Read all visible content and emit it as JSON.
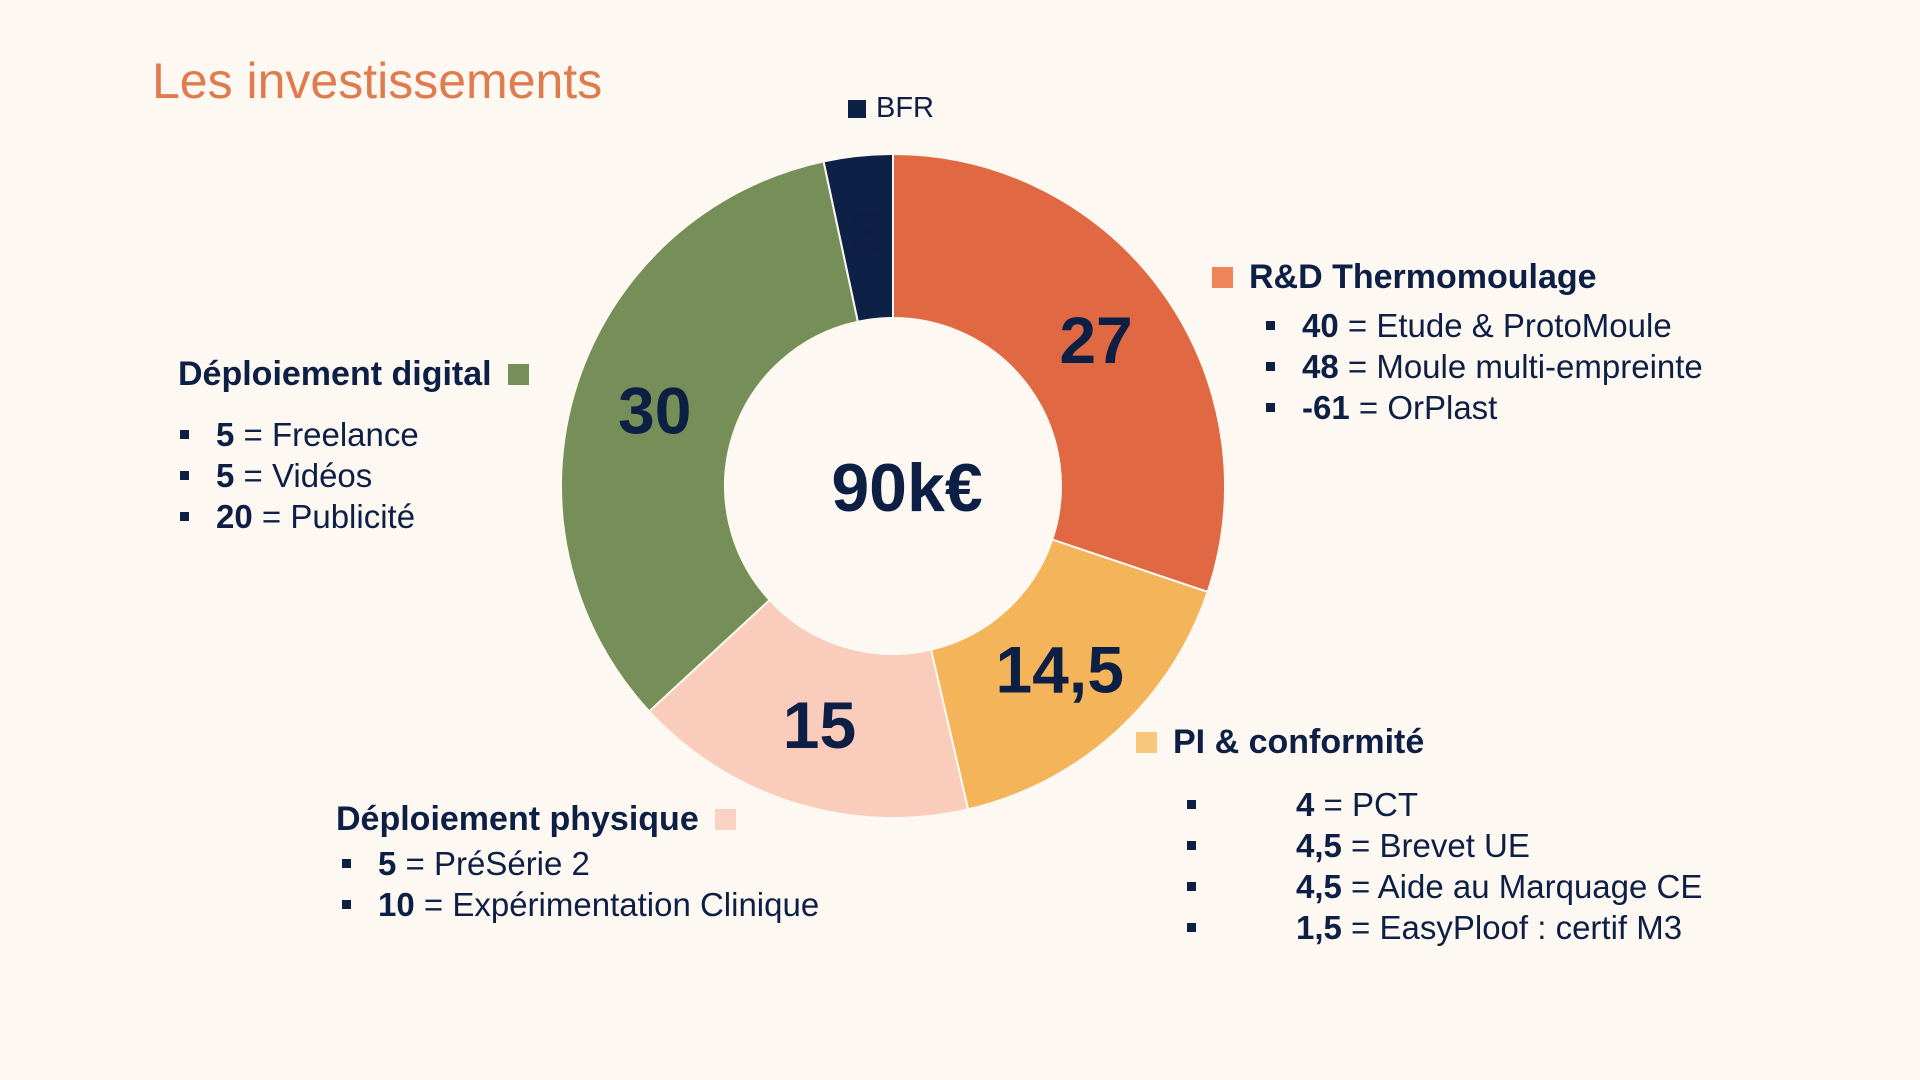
{
  "title": "Les investissements",
  "chart_data": {
    "type": "pie",
    "variant": "donut",
    "total_label": "90k€",
    "slices": [
      {
        "key": "rd",
        "label": "R&D Thermomoulage",
        "value": 27,
        "value_label": "27",
        "color": "#e06842",
        "items": [
          {
            "value": "40",
            "text": "= Etude & ProtoMoule"
          },
          {
            "value": "48",
            "text": "= Moule multi-empreinte"
          },
          {
            "value": "-61",
            "text": "= OrPlast"
          }
        ]
      },
      {
        "key": "pi",
        "label": "PI & conformité",
        "value": 14.5,
        "value_label": "14,5",
        "color": "#f4b55a",
        "items": [
          {
            "value": "4",
            "text": "= PCT"
          },
          {
            "value": "4,5",
            "text": "= Brevet UE"
          },
          {
            "value": "4,5",
            "text": "= Aide au Marquage CE"
          },
          {
            "value": "1,5",
            "text": "= EasyPloof : certif M3"
          }
        ]
      },
      {
        "key": "physique",
        "label": "Déploiement physique",
        "value": 15,
        "value_label": "15",
        "color": "#f9ccbb",
        "items": [
          {
            "value": "5",
            "text": "= PréSérie 2"
          },
          {
            "value": "10",
            "text": "= Expérimentation Clinique"
          }
        ]
      },
      {
        "key": "digital",
        "label": "Déploiement digital",
        "value": 30,
        "value_label": "30",
        "color": "#768f58",
        "items": [
          {
            "value": "5",
            "text": "= Freelance"
          },
          {
            "value": "5",
            "text": "= Vidéos"
          },
          {
            "value": "20",
            "text": "= Publicité"
          }
        ]
      },
      {
        "key": "bfr",
        "label": "BFR",
        "value": 3,
        "value_label": "3",
        "color": "#0d2147",
        "items": []
      }
    ],
    "legend_swatch_colors": {
      "rd": "#f0845a",
      "pi": "#f8c77c",
      "physique": "#fad2c4",
      "digital": "#768f58",
      "bfr": "#0d2147"
    }
  }
}
